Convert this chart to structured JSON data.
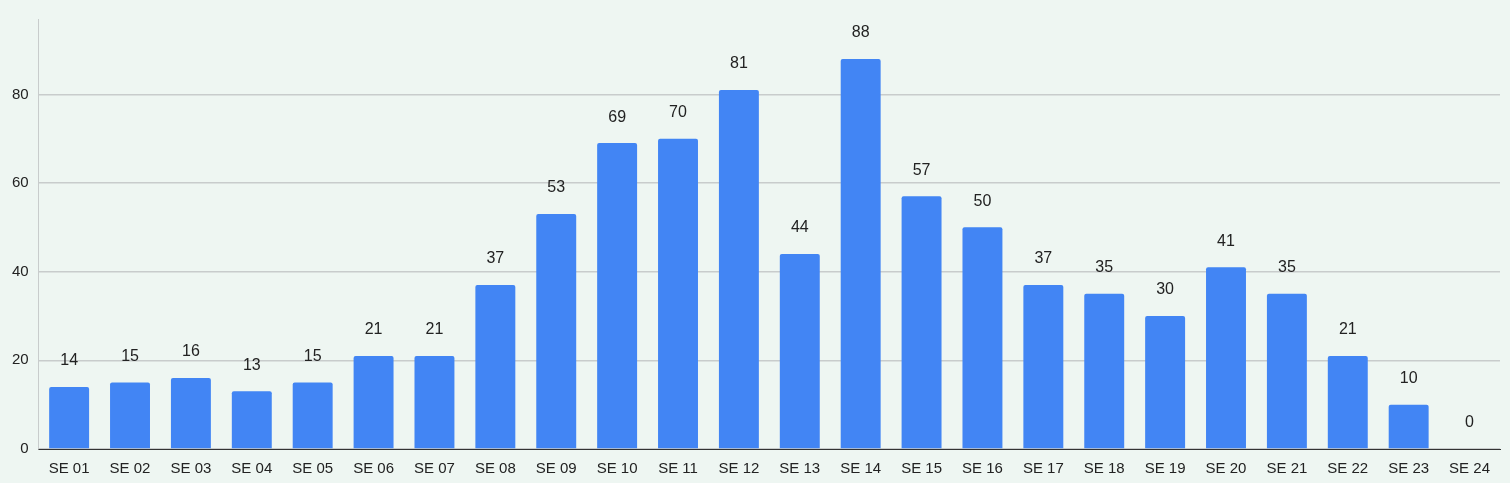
{
  "chart_data": {
    "type": "bar",
    "categories": [
      "SE 01",
      "SE 02",
      "SE 03",
      "SE 04",
      "SE 05",
      "SE 06",
      "SE 07",
      "SE 08",
      "SE 09",
      "SE 10",
      "SE 11",
      "SE 12",
      "SE 13",
      "SE 14",
      "SE 15",
      "SE 16",
      "SE 17",
      "SE 18",
      "SE 19",
      "SE 20",
      "SE 21",
      "SE 22",
      "SE 23",
      "SE 24"
    ],
    "values": [
      14,
      15,
      16,
      13,
      15,
      21,
      21,
      37,
      53,
      69,
      70,
      81,
      44,
      88,
      57,
      50,
      37,
      35,
      30,
      41,
      35,
      21,
      10,
      0
    ],
    "color": "#4285f4",
    "ylim": [
      0,
      97
    ],
    "yticks": [
      0,
      20,
      40,
      60,
      80
    ],
    "grid": "y",
    "data_labels": true
  }
}
